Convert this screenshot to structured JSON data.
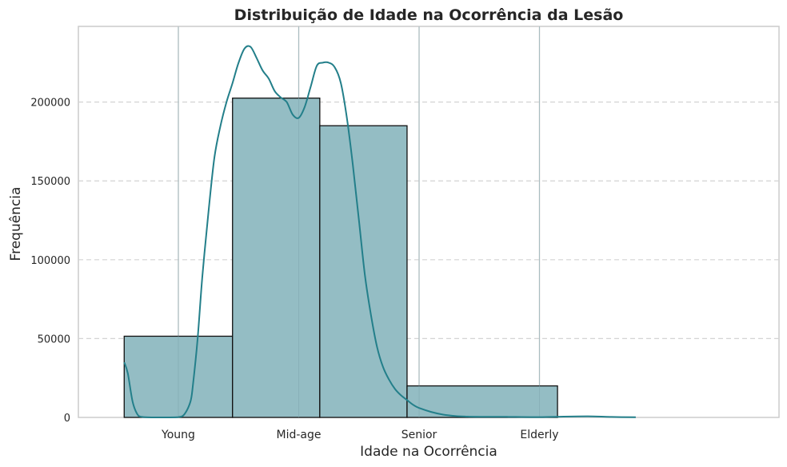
{
  "chart_data": {
    "type": "bar",
    "title": "Distribuição de Idade na Ocorrência da Lesão",
    "xlabel": "Idade na Ocorrência",
    "ylabel": "Frequência",
    "categories": [
      "Young",
      "Mid-age",
      "Senior",
      "Elderly"
    ],
    "yticks": [
      "0",
      "50000",
      "100000",
      "150000",
      "200000"
    ],
    "ylim": [
      0,
      248000
    ],
    "grid": "y dashed",
    "bars": [
      {
        "from": -0.45,
        "to": 0.45,
        "value": 51500
      },
      {
        "from": 0.45,
        "to": 1.175,
        "value": 202500
      },
      {
        "from": 1.175,
        "to": 1.9,
        "value": 185000
      },
      {
        "from": 1.9,
        "to": 3.15,
        "value": 20000
      }
    ],
    "kde": {
      "x": [
        -0.45,
        -0.42,
        -0.38,
        -0.34,
        -0.3,
        -0.2,
        -0.1,
        0.0,
        0.05,
        0.1,
        0.12,
        0.16,
        0.2,
        0.25,
        0.3,
        0.35,
        0.4,
        0.45,
        0.5,
        0.55,
        0.6,
        0.65,
        0.7,
        0.75,
        0.8,
        0.85,
        0.9,
        0.95,
        1.0,
        1.05,
        1.1,
        1.15,
        1.2,
        1.25,
        1.3,
        1.35,
        1.4,
        1.45,
        1.5,
        1.55,
        1.6,
        1.65,
        1.7,
        1.75,
        1.8,
        1.85,
        1.9,
        1.95,
        2.0,
        2.1,
        2.2,
        2.3,
        2.4,
        2.5,
        2.6,
        2.8,
        3.0,
        3.2,
        3.4,
        3.6,
        3.8
      ],
      "y": [
        35000,
        28000,
        10000,
        2000,
        300,
        0,
        0,
        200,
        2000,
        10000,
        20000,
        50000,
        90000,
        130000,
        165000,
        185000,
        200000,
        212000,
        225000,
        234000,
        235000,
        228000,
        220000,
        215000,
        207000,
        203000,
        200000,
        192000,
        190000,
        197000,
        210000,
        223000,
        225000,
        225000,
        222000,
        212000,
        190000,
        160000,
        125000,
        90000,
        65000,
        45000,
        32000,
        24000,
        18000,
        14000,
        11000,
        8000,
        6000,
        3500,
        1800,
        900,
        500,
        400,
        400,
        300,
        200,
        500,
        700,
        300,
        100
      ]
    },
    "colors": {
      "bar_fill": "#94bdc4",
      "bar_edge": "#111111",
      "kde_line": "#237f8a",
      "grid": "#d4d4d4",
      "frame": "#cccccc"
    }
  }
}
